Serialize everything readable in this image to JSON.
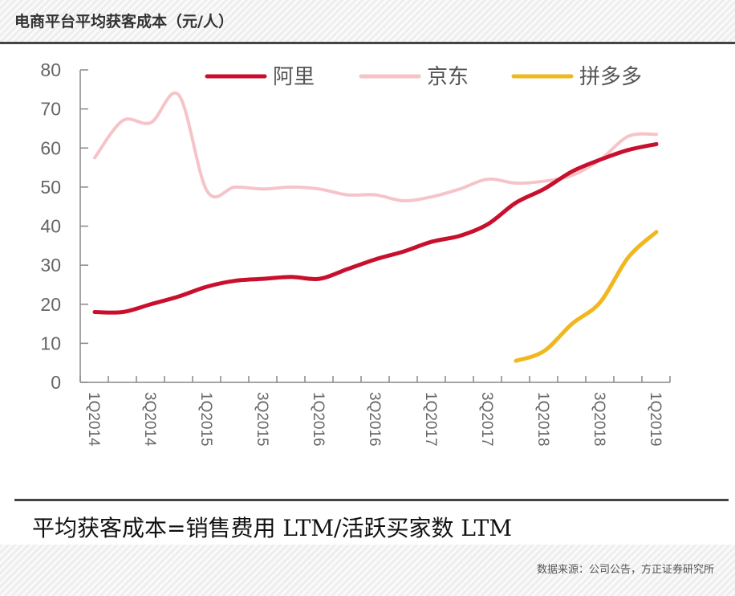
{
  "header": {
    "title": "电商平台平均获客成本（元/人）"
  },
  "footer": {
    "formula": "平均获客成本=销售费用 LTM/活跃买家数 LTM",
    "source": "数据来源：公司公告，方正证券研究所"
  },
  "chart_data": {
    "type": "line",
    "title": "电商平台平均获客成本（元/人）",
    "categories": [
      "1Q2014",
      "2Q2014",
      "3Q2014",
      "4Q2014",
      "1Q2015",
      "2Q2015",
      "3Q2015",
      "4Q2015",
      "1Q2016",
      "2Q2016",
      "3Q2016",
      "4Q2016",
      "1Q2017",
      "2Q2017",
      "3Q2017",
      "4Q2017",
      "1Q2018",
      "2Q2018",
      "3Q2018",
      "4Q2018",
      "1Q2019"
    ],
    "tick_labels": [
      "1Q2014",
      "3Q2014",
      "1Q2015",
      "3Q2015",
      "1Q2016",
      "3Q2016",
      "1Q2017",
      "3Q2017",
      "1Q2018",
      "3Q2018",
      "1Q2019"
    ],
    "ylim": [
      0,
      80
    ],
    "yticks": [
      0,
      10,
      20,
      30,
      40,
      50,
      60,
      70,
      80
    ],
    "grid": false,
    "legend": "top",
    "series": [
      {
        "name": "阿里",
        "color": "#c8102e",
        "values": [
          18,
          18,
          20,
          22,
          24.5,
          26,
          26.5,
          27,
          26.5,
          29,
          31.5,
          33.5,
          36,
          37.5,
          40.5,
          46,
          49.5,
          54,
          57,
          59.5,
          61
        ]
      },
      {
        "name": "京东",
        "color": "#f6c4c8",
        "values": [
          57.5,
          67,
          66.5,
          73.5,
          49,
          50,
          49.5,
          50,
          49.5,
          48,
          48,
          46.5,
          47.5,
          49.5,
          52,
          51,
          51.5,
          53,
          57,
          63,
          63.5
        ]
      },
      {
        "name": "拼多多",
        "color": "#f0b81e",
        "values": [
          null,
          null,
          null,
          null,
          null,
          null,
          null,
          null,
          null,
          null,
          null,
          null,
          null,
          null,
          null,
          5.5,
          8,
          15,
          20.5,
          32,
          38.5
        ]
      }
    ]
  }
}
